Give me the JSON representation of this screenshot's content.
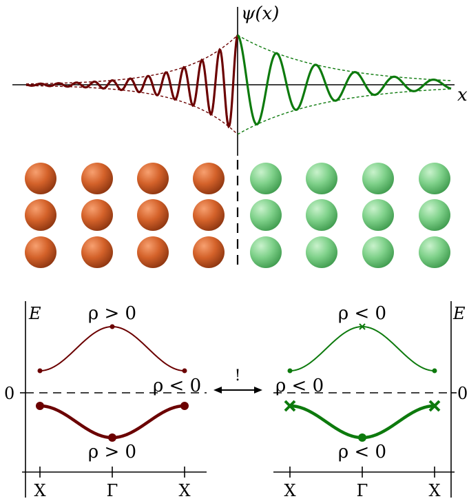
{
  "wavefunction": {
    "y_label": "ψ(x)",
    "x_label": "x",
    "left_color": "#6b0000",
    "right_color": "#0d7a0d"
  },
  "lattice": {
    "rows": 3,
    "left_columns": 4,
    "right_columns": 4,
    "left_color": "#d4622a",
    "right_color": "#7fd18a"
  },
  "left_panel": {
    "axis_label": "E",
    "zero_label": "0",
    "ticks": [
      "X",
      "Γ",
      "X"
    ],
    "upper_band_label": "ρ > 0",
    "lower_band_label": "ρ > 0",
    "side_label": "ρ < 0",
    "color": "#6b0000"
  },
  "right_panel": {
    "axis_label": "E",
    "zero_label": "0",
    "ticks": [
      "X",
      "Γ",
      "X"
    ],
    "upper_band_label": "ρ < 0",
    "lower_band_label": "ρ < 0",
    "side_label": "ρ < 0",
    "color": "#0d7a0d"
  },
  "center_arrow_label": "!"
}
